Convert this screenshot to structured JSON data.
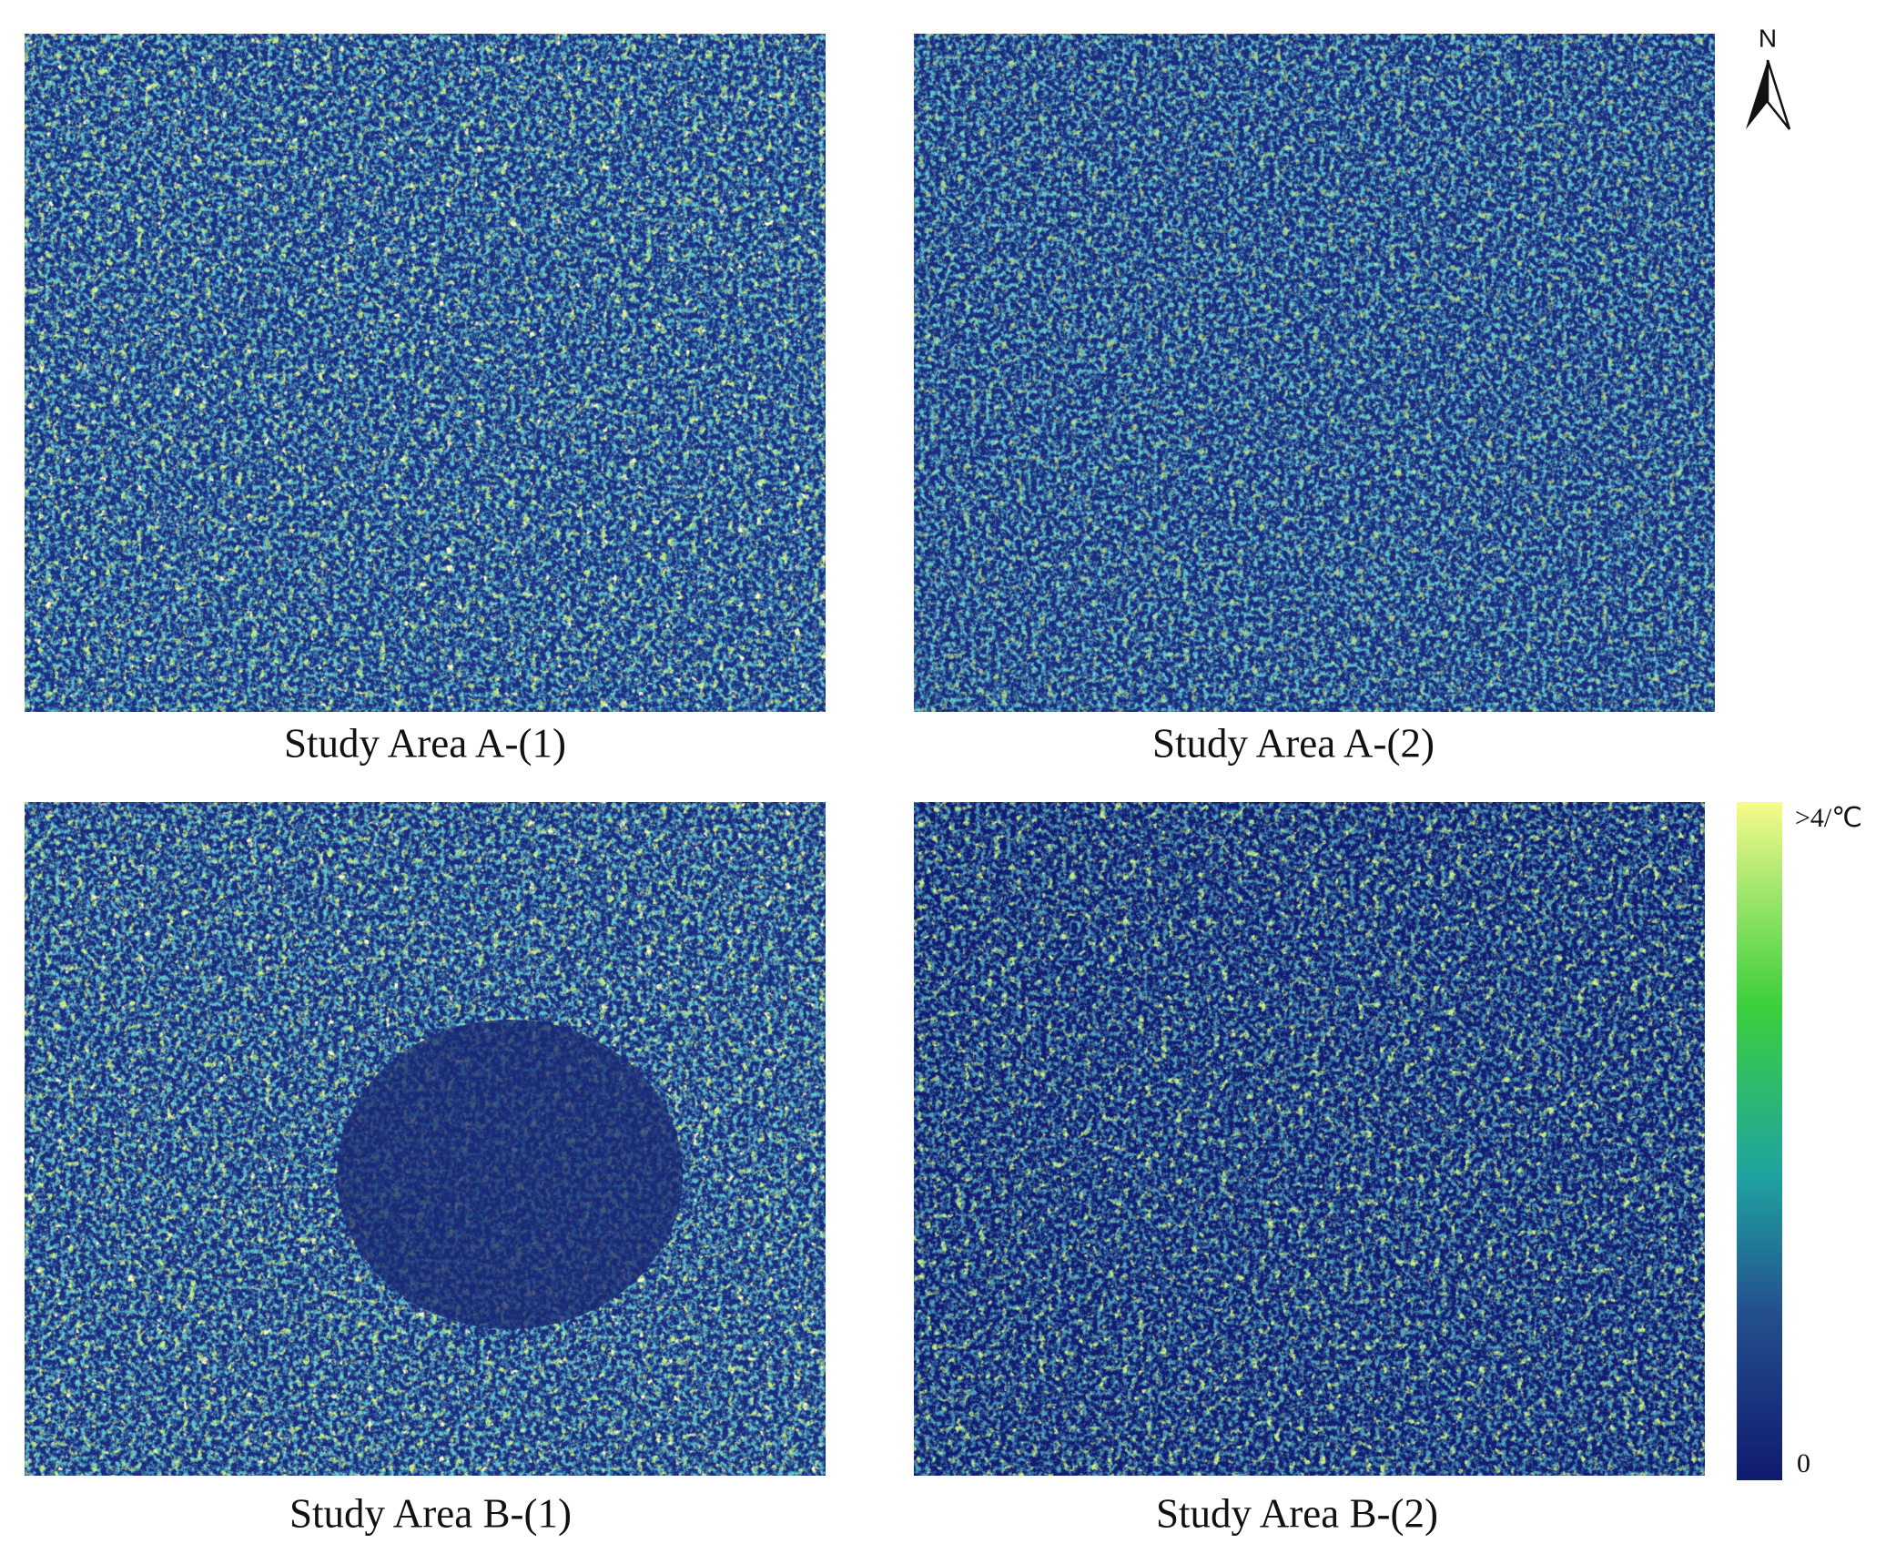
{
  "panels": [
    {
      "caption": "Study Area A-(1)"
    },
    {
      "caption": "Study Area A-(2)"
    },
    {
      "caption": "Study Area B-(1)"
    },
    {
      "caption": "Study Area B-(2)"
    }
  ],
  "north_arrow": {
    "label": "N"
  },
  "legend": {
    "max_label": ">4/℃",
    "min_label": "0"
  }
}
